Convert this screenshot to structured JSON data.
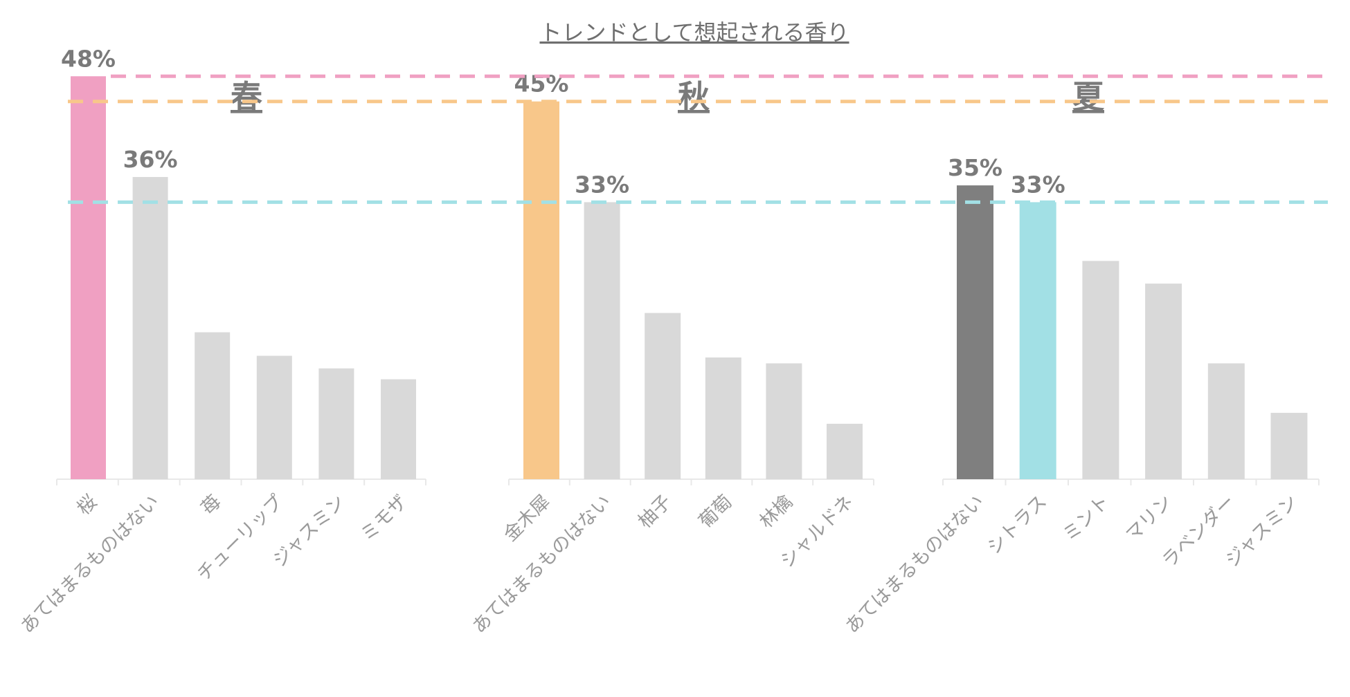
{
  "title": "トレンドとして想起される香り",
  "colors": {
    "pink": "#f0a0c2",
    "orange": "#f8c78a",
    "cyan": "#a2e0e5",
    "gray": "#d9d9d9",
    "dark": "#7f7f7f",
    "axis": "#e8e8e8"
  },
  "chart_data": [
    {
      "type": "bar",
      "title": "春",
      "categories": [
        "桜",
        "あてはまるものはない",
        "苺",
        "チューリップ",
        "ジャスミン",
        "ミモザ"
      ],
      "values": [
        48,
        36,
        17.5,
        14.7,
        13.2,
        11.9
      ],
      "labels": [
        "48%",
        "36%",
        "",
        "",
        "",
        ""
      ],
      "bar_colors": [
        "pink",
        "gray",
        "gray",
        "gray",
        "gray",
        "gray"
      ],
      "ylim": [
        0,
        50
      ]
    },
    {
      "type": "bar",
      "title": "秋",
      "categories": [
        "金木犀",
        "あてはまるものはない",
        "柚子",
        "葡萄",
        "林檎",
        "シャルドネ"
      ],
      "values": [
        45,
        33,
        19.8,
        14.5,
        13.8,
        6.6
      ],
      "labels": [
        "45%",
        "33%",
        "",
        "",
        "",
        ""
      ],
      "bar_colors": [
        "orange",
        "gray",
        "gray",
        "gray",
        "gray",
        "gray"
      ],
      "ylim": [
        0,
        50
      ]
    },
    {
      "type": "bar",
      "title": "夏",
      "categories": [
        "あてはまるものはない",
        "シトラス",
        "ミント",
        "マリン",
        "ラベンダー",
        "ジャスミン"
      ],
      "values": [
        35,
        33,
        26,
        23.3,
        13.8,
        7.9
      ],
      "labels": [
        "35%",
        "33%",
        "",
        "",
        "",
        ""
      ],
      "bar_colors": [
        "dark",
        "cyan",
        "gray",
        "gray",
        "gray",
        "gray"
      ],
      "ylim": [
        0,
        50
      ]
    }
  ],
  "reference_lines": [
    {
      "value": 48,
      "color": "pink"
    },
    {
      "value": 45,
      "color": "orange"
    },
    {
      "value": 33,
      "color": "cyan"
    }
  ]
}
